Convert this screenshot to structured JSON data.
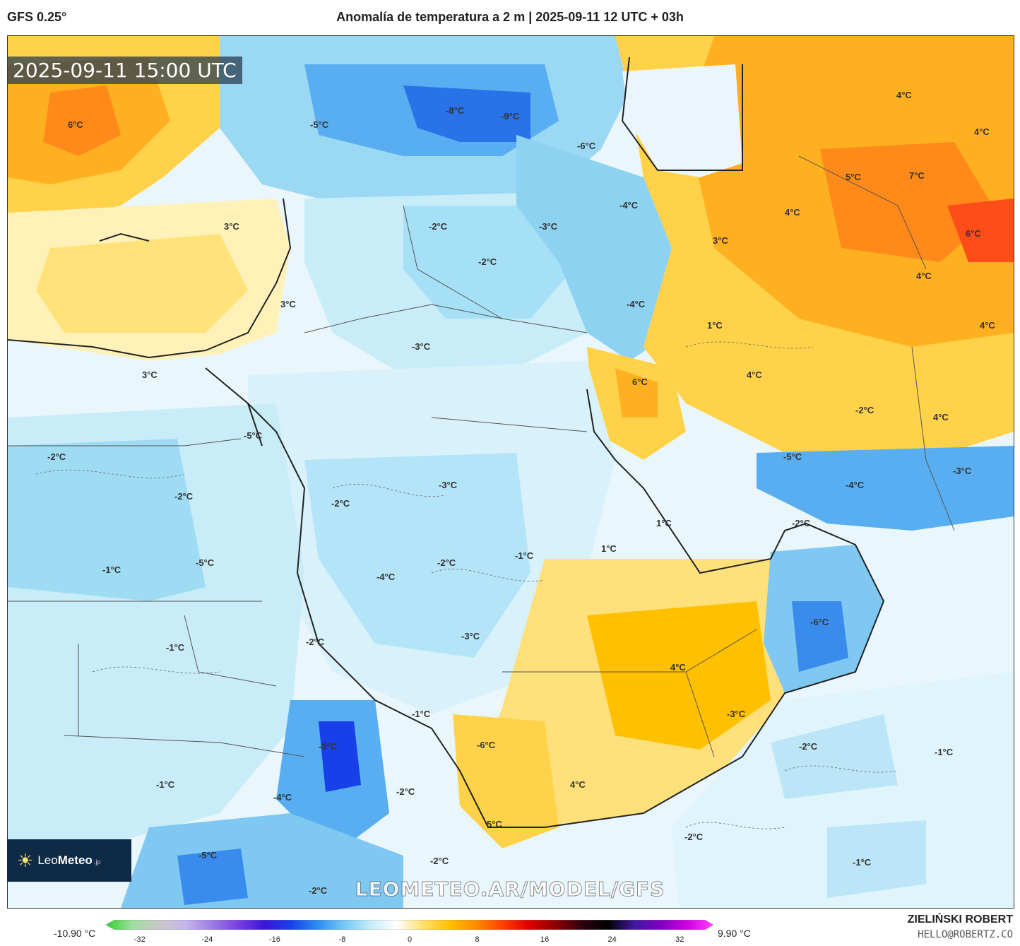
{
  "header": {
    "model": "GFS 0.25°",
    "title": "Anomalía de temperatura a 2 m | 2025-09-11 12 UTC + 03h"
  },
  "timestamp": "2025-09-11 15:00 UTC",
  "watermark": "LEOMETEO.AR/MODEL/GFS",
  "logo": {
    "brand_a": "Leo",
    "brand_b": "Meteo",
    "suffix": ".jp"
  },
  "colorbar": {
    "min_label": "-10.90 °C",
    "max_label": "9.90 °C",
    "ticks": [
      "-32",
      "-24",
      "-16",
      "-8",
      "0",
      "8",
      "16",
      "24",
      "32"
    ],
    "tick_values": [
      -32,
      -24,
      -16,
      -8,
      0,
      8,
      16,
      24,
      32
    ],
    "range": [
      -36,
      36
    ],
    "colors": [
      "#30d030",
      "#9ee09e",
      "#c8c8c8",
      "#c6b6ea",
      "#9e7ee6",
      "#7a3ee0",
      "#3a16d8",
      "#1840e8",
      "#2c8cf0",
      "#74c8f4",
      "#c4ecf8",
      "#ffffff",
      "#ffe070",
      "#ffc000",
      "#ff8c00",
      "#ff4000",
      "#e00000",
      "#900000",
      "#300010",
      "#000000",
      "#4018a0",
      "#8000c0",
      "#d000e0",
      "#ff40ff"
    ]
  },
  "credits": {
    "author": "ZIELIŃSKI ROBERT",
    "email": "HELLO@ROBERTZ.CO"
  },
  "map_labels": [
    "6°C",
    "-5°C",
    "-8°C",
    "-9°C",
    "-6°C",
    "4°C",
    "4°C",
    "3°C",
    "-2°C",
    "-4°C",
    "-3°C",
    "5°C",
    "7°C",
    "4°C",
    "6°C",
    "3°C",
    "-2°C",
    "4°C",
    "3°C",
    "-4°C",
    "1°C",
    "4°C",
    "4°C",
    "-3°C",
    "6°C",
    "3°C",
    "-2°C",
    "4°C",
    "-5°C",
    "-5°C",
    "-3°C",
    "-4°C",
    "-2°C",
    "-2°C",
    "-3°C",
    "-2°C",
    "1°C",
    "-2°C",
    "-5°C",
    "-1°C",
    "-1°C",
    "1°C",
    "-4°C",
    "-2°C",
    "-6°C",
    "-1°C",
    "-2°C",
    "-3°C",
    "4°C",
    "-1°C",
    "-3°C",
    "-8°C",
    "-6°C",
    "-1°C",
    "-2°C",
    "-1°C",
    "4°C",
    "-4°C",
    "-2°C",
    "-5°C",
    "-2°C",
    "5°C",
    "-2°C",
    "-2°C",
    "-1°C"
  ]
}
